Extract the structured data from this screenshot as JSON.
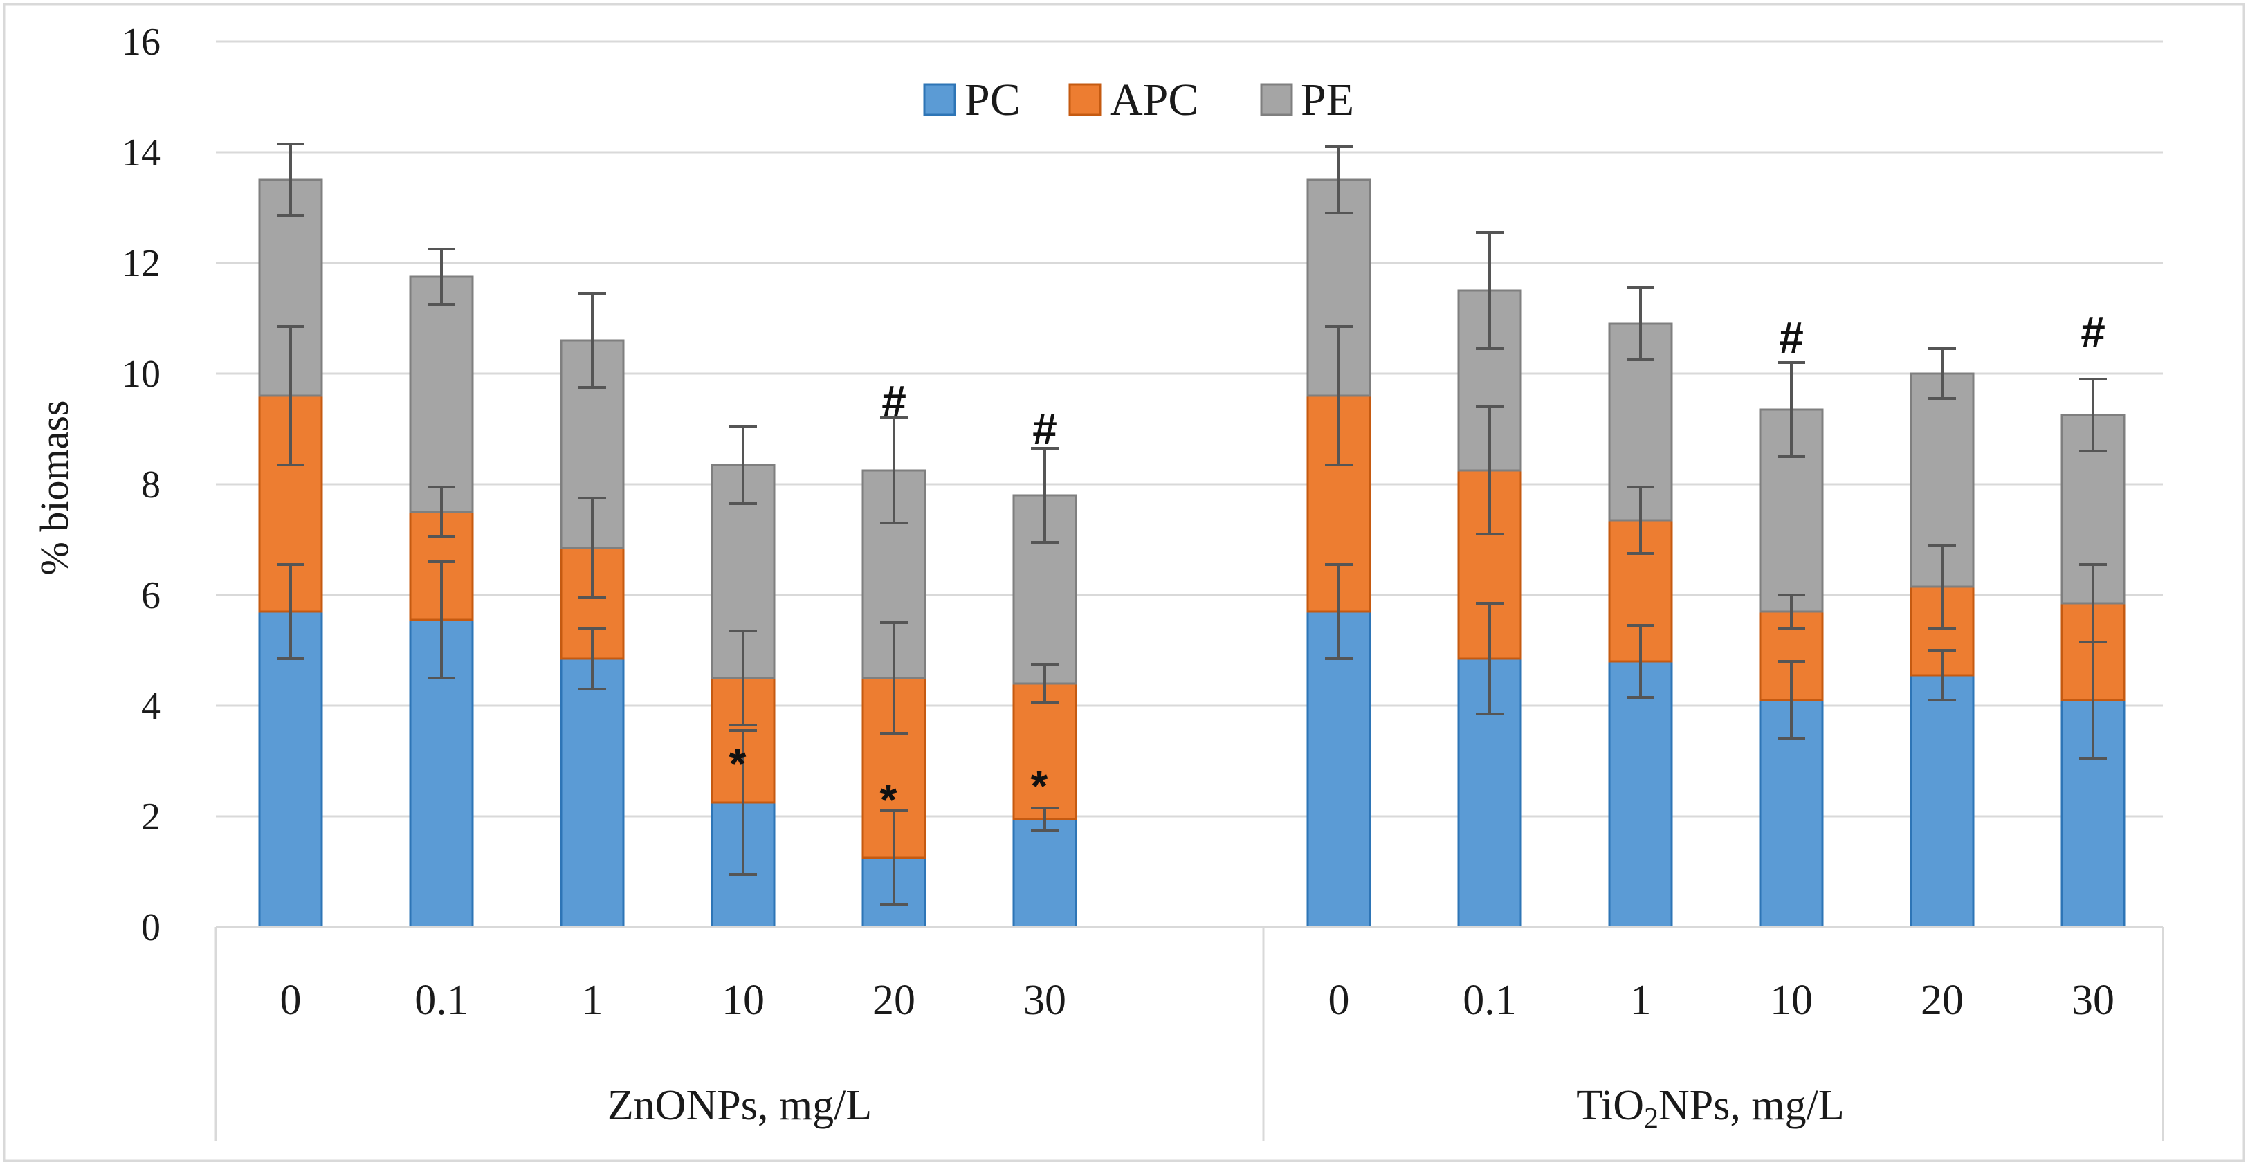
{
  "chart_data": {
    "type": "bar",
    "stacked": true,
    "title": "",
    "xlabel": "",
    "ylabel": "% biomass",
    "ylim": [
      0,
      16
    ],
    "yticks": [
      0,
      2,
      4,
      6,
      8,
      10,
      12,
      14,
      16
    ],
    "grid": true,
    "legend_position": "top-center",
    "groups": [
      {
        "label": "ZnONPs, mg/L",
        "label_main": "ZnONPs, mg/L",
        "categories": [
          "0",
          "0.1",
          "1",
          "10",
          "20",
          "30"
        ]
      },
      {
        "label": "TiO2NPs, mg/L",
        "label_prefix": "TiO",
        "label_sub": "2",
        "label_suffix": "NPs, mg/L",
        "categories": [
          "0",
          "0.1",
          "1",
          "10",
          "20",
          "30"
        ]
      }
    ],
    "series": [
      {
        "name": "PC",
        "color": "#5b9bd5",
        "stroke": "#2e75b6",
        "values": [
          5.7,
          5.55,
          4.85,
          2.25,
          1.25,
          1.95,
          5.7,
          4.85,
          4.8,
          4.1,
          4.55,
          4.1
        ],
        "errors": [
          0.85,
          1.05,
          0.55,
          1.3,
          0.85,
          0.2,
          0.85,
          1.0,
          0.65,
          0.7,
          0.45,
          1.05
        ]
      },
      {
        "name": "APC",
        "color": "#ed7d31",
        "stroke": "#c55a11",
        "values": [
          3.9,
          1.95,
          2.0,
          2.25,
          3.25,
          2.45,
          3.9,
          3.4,
          2.55,
          1.6,
          1.6,
          1.75
        ],
        "errors": [
          1.25,
          0.45,
          0.9,
          0.85,
          1.0,
          0.35,
          1.25,
          1.15,
          0.6,
          0.3,
          0.75,
          0.7
        ]
      },
      {
        "name": "PE",
        "color": "#a5a5a5",
        "stroke": "#7f7f7f",
        "values": [
          3.9,
          4.25,
          3.75,
          3.85,
          3.75,
          3.4,
          3.9,
          3.25,
          3.55,
          3.65,
          3.85,
          3.4
        ],
        "errors": [
          0.65,
          0.5,
          0.85,
          0.7,
          0.95,
          0.85,
          0.6,
          1.05,
          0.65,
          0.85,
          0.45,
          0.65
        ]
      }
    ],
    "annotations": [
      {
        "bar": 3,
        "text": "*",
        "at_value": 3.05
      },
      {
        "bar": 4,
        "text": "*",
        "at_value": 2.4
      },
      {
        "bar": 5,
        "text": "*",
        "at_value": 2.65
      },
      {
        "bar": 4,
        "text": "#",
        "at_value": 9.5
      },
      {
        "bar": 5,
        "text": "#",
        "at_value": 9.0
      },
      {
        "bar": 9,
        "text": "#",
        "at_value": 10.65
      },
      {
        "bar": 11,
        "text": "#",
        "at_value": 10.75
      }
    ]
  }
}
